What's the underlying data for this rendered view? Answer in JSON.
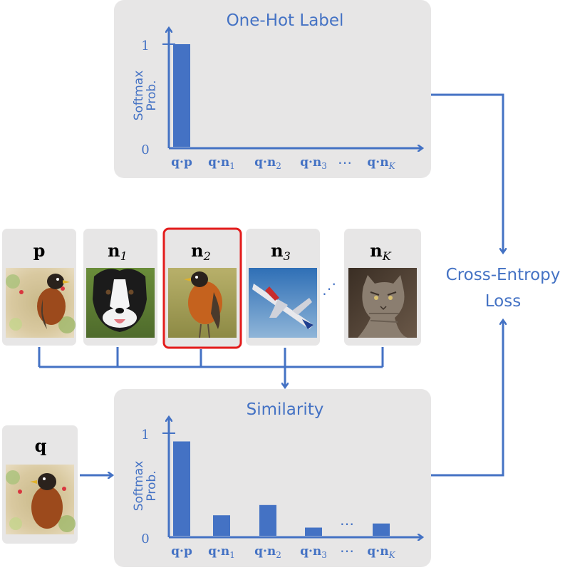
{
  "colors": {
    "accent": "#4472c4",
    "panel": "#e7e6e6",
    "card": "#e7e6e6",
    "highlight": "#e31b1b"
  },
  "one_hot_panel": {
    "title": "One-Hot Label",
    "ylabel_line1": "Softmax",
    "ylabel_line2": "Prob.",
    "ytick_top": "1",
    "ytick_bottom": "0"
  },
  "similarity_panel": {
    "title": "Similarity",
    "ylabel_line1": "Softmax",
    "ylabel_line2": "Prob.",
    "ytick_top": "1",
    "ytick_bottom": "0"
  },
  "chart_data": [
    {
      "type": "bar",
      "title": "One-Hot Label",
      "ylabel": "Softmax Prob.",
      "ylim": [
        0,
        1
      ],
      "categories": [
        "q·p",
        "q·n1",
        "q·n2",
        "q·n3",
        "q·nK"
      ],
      "values": [
        1,
        0,
        0,
        0,
        0
      ],
      "ellipsis_between": [
        "q·n3",
        "q·nK"
      ]
    },
    {
      "type": "bar",
      "title": "Similarity",
      "ylabel": "Softmax Prob.",
      "ylim": [
        0,
        1
      ],
      "categories": [
        "q·p",
        "q·n1",
        "q·n2",
        "q·n3",
        "q·nK"
      ],
      "values": [
        0.92,
        0.2,
        0.3,
        0.08,
        0.12
      ],
      "ellipsis_between": [
        "q·n3",
        "q·nK"
      ]
    }
  ],
  "cards": [
    {
      "label": "p",
      "subscript": "",
      "image": "robin",
      "highlighted": false
    },
    {
      "label": "n",
      "subscript": "1",
      "image": "dog",
      "highlighted": false
    },
    {
      "label": "n",
      "subscript": "2",
      "image": "robin-2",
      "highlighted": true
    },
    {
      "label": "n",
      "subscript": "3",
      "image": "jet",
      "highlighted": false
    },
    {
      "label": "n",
      "subscript": "K",
      "image": "cat",
      "highlighted": false
    }
  ],
  "query_card": {
    "label": "q",
    "image": "robin-query"
  },
  "gap_dots": "⋰",
  "loss": {
    "line1": "Cross-Entropy",
    "line2": "Loss"
  }
}
